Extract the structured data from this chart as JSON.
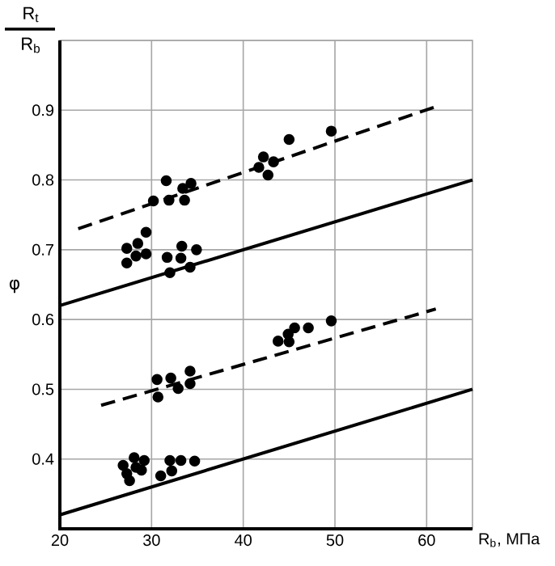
{
  "chart_data": {
    "type": "scatter",
    "xlabel": "R$_{b}$, МПа",
    "ylabel": "φ",
    "annotations": [
      "R$_{t}$",
      "R$_{b}$"
    ],
    "xlim": [
      20,
      65
    ],
    "ylim": [
      0.3,
      1.0
    ],
    "xticks": [
      20,
      30,
      40,
      50,
      60
    ],
    "yticks": [
      {
        "value": 0.3,
        "label": null
      },
      0.4,
      0.5,
      0.6,
      0.7,
      0.8,
      0.9,
      {
        "value": 1.0,
        "label": null
      }
    ],
    "grid": true,
    "series": [
      {
        "type": "line",
        "line_style": "solid",
        "color": "#000000",
        "x": [
          20,
          65
        ],
        "values": [
          0.62,
          0.8
        ]
      },
      {
        "type": "line",
        "line_style": "solid",
        "color": "#000000",
        "x": [
          20,
          65
        ],
        "values": [
          0.32,
          0.5
        ]
      },
      {
        "type": "line",
        "line_style": "dashed",
        "color": "#000000",
        "x": [
          22,
          61
        ],
        "values": [
          0.73,
          0.905
        ]
      },
      {
        "type": "line",
        "line_style": "dashed",
        "color": "#000000",
        "x": [
          24.5,
          61
        ],
        "values": [
          0.477,
          0.615
        ]
      },
      {
        "marker": "circle",
        "color": "#000000",
        "x": [
          27.3,
          27.3,
          28.3,
          28.5,
          29.4,
          29.4,
          31.7,
          32.0,
          33.3,
          33.2,
          34.2,
          34.9
        ],
        "values": [
          0.702,
          0.681,
          0.691,
          0.709,
          0.725,
          0.694,
          0.689,
          0.667,
          0.705,
          0.688,
          0.675,
          0.7
        ]
      },
      {
        "marker": "circle",
        "color": "#000000",
        "x": [
          30.2,
          31.6,
          31.9,
          33.6,
          33.4,
          34.3,
          42.2,
          41.7,
          42.7,
          43.3,
          45.0,
          49.6
        ],
        "values": [
          0.77,
          0.799,
          0.771,
          0.771,
          0.788,
          0.795,
          0.833,
          0.818,
          0.807,
          0.826,
          0.858,
          0.87
        ]
      },
      {
        "marker": "circle",
        "color": "#000000",
        "x": [
          30.6,
          30.7,
          32.1,
          32.9,
          34.2,
          34.2,
          43.8,
          44.9,
          45.6,
          47.1,
          45.0
        ],
        "values": [
          0.514,
          0.489,
          0.516,
          0.501,
          0.526,
          0.508,
          0.569,
          0.579,
          0.588,
          0.588,
          0.568
        ]
      },
      {
        "marker": "circle",
        "color": "#000000",
        "x": [
          26.9,
          27.3,
          27.6,
          28.1,
          28.3,
          28.9,
          29.2,
          31.0,
          32.0,
          32.2,
          33.2,
          34.7,
          49.6
        ],
        "values": [
          0.391,
          0.379,
          0.369,
          0.402,
          0.388,
          0.384,
          0.398,
          0.376,
          0.398,
          0.383,
          0.398,
          0.397,
          0.598
        ]
      }
    ]
  }
}
